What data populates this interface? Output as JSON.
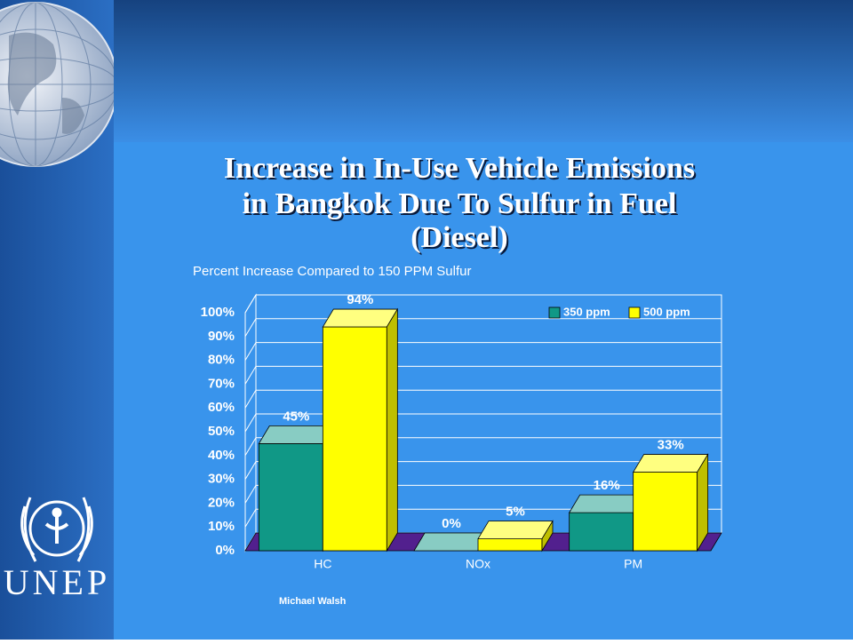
{
  "chart_data": {
    "type": "bar",
    "title": [
      "Increase in In-Use Vehicle Emissions",
      "in Bangkok Due To Sulfur in Fuel",
      "(Diesel)"
    ],
    "subtitle": "Percent Increase Compared to 150 PPM Sulfur",
    "categories": [
      "HC",
      "NOx",
      "PM"
    ],
    "series": [
      {
        "name": "350 ppm",
        "color": "#109886",
        "values": [
          45,
          0,
          16
        ],
        "value_labels": [
          "45%",
          "0%",
          "16%"
        ]
      },
      {
        "name": "500 ppm",
        "color": "#ffff00",
        "values": [
          94,
          5,
          33
        ],
        "value_labels": [
          "94%",
          "5%",
          "33%"
        ]
      }
    ],
    "ylim": [
      0,
      100
    ],
    "yticks": [
      {
        "value": 0,
        "label": "0%"
      },
      {
        "value": 10,
        "label": "10%"
      },
      {
        "value": 20,
        "label": "20%"
      },
      {
        "value": 30,
        "label": "30%"
      },
      {
        "value": 40,
        "label": "40%"
      },
      {
        "value": 50,
        "label": "50%"
      },
      {
        "value": 60,
        "label": "60%"
      },
      {
        "value": 70,
        "label": "70%"
      },
      {
        "value": 80,
        "label": "80%"
      },
      {
        "value": 90,
        "label": "90%"
      },
      {
        "value": 100,
        "label": "100%"
      }
    ],
    "grid": true,
    "legend": "upper right"
  },
  "author": "Michael Walsh",
  "logo": "UNEP"
}
